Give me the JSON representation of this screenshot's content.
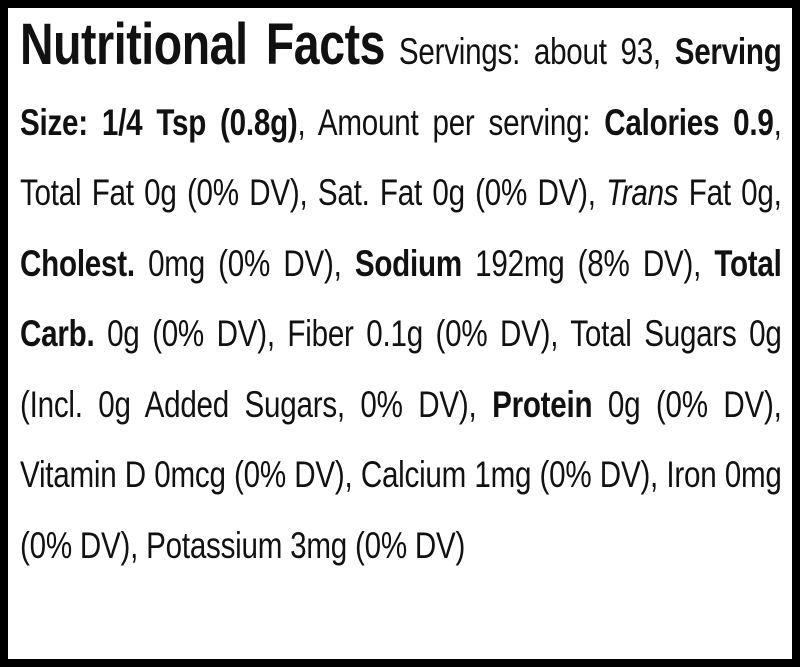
{
  "label": {
    "title": "Nutritional Facts",
    "runs": [
      {
        "text": "Servings: about 93,",
        "style": "normal"
      },
      {
        "text": "Serving Size: 1/4 Tsp (0.8g)",
        "style": "bold"
      },
      {
        "text": ", Amount per serving:",
        "style": "normal"
      },
      {
        "text": "Calories 0.9",
        "style": "bold"
      },
      {
        "text": ", Total Fat 0g (0% DV), Sat. Fat 0g (0% DV),",
        "style": "normal"
      },
      {
        "text": "Trans",
        "style": "italic"
      },
      {
        "text": "Fat 0g,",
        "style": "normal"
      },
      {
        "text": "Cholest.",
        "style": "bold"
      },
      {
        "text": "0mg (0% DV),",
        "style": "normal"
      },
      {
        "text": "Sodium",
        "style": "bold"
      },
      {
        "text": "192mg (8% DV),",
        "style": "normal"
      },
      {
        "text": "Total Carb.",
        "style": "bold"
      },
      {
        "text": "0g (0% DV), Fiber 0.1g (0% DV), Total Sugars 0g (Incl. 0g Added Sugars, 0% DV),",
        "style": "normal"
      },
      {
        "text": "Protein",
        "style": "bold"
      },
      {
        "text": "0g (0% DV), Vitamin D 0mcg (0% DV), Calcium 1mg (0% DV), Iron 0mg (0% DV), Potassium 3mg (0% DV)",
        "style": "normal"
      }
    ]
  }
}
